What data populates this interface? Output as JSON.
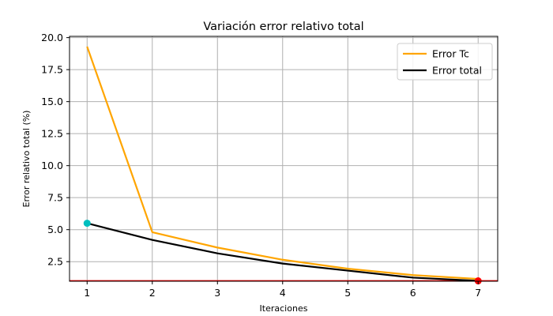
{
  "chart_data": {
    "type": "line",
    "title": "Variación error relativo total",
    "xlabel": "Iteraciones",
    "ylabel": "Error relativo total (%)",
    "xlim": [
      0.73,
      7.3
    ],
    "ylim": [
      0.97,
      20.1
    ],
    "xticks": [
      "1",
      "2",
      "3",
      "4",
      "5",
      "6",
      "7"
    ],
    "yticks": [
      "2.5",
      "5.0",
      "7.5",
      "10.0",
      "12.5",
      "15.0",
      "17.5",
      "20.0"
    ],
    "grid": true,
    "legend_position": "top-right",
    "x": [
      1,
      2,
      3,
      4,
      5,
      6,
      7
    ],
    "series": [
      {
        "name": "Error Tc",
        "color": "#ffa500",
        "values": [
          19.3,
          4.8,
          3.6,
          2.65,
          1.95,
          1.45,
          1.15
        ]
      },
      {
        "name": "Error total",
        "color": "#000000",
        "values": [
          5.5,
          4.2,
          3.15,
          2.35,
          1.8,
          1.25,
          1.0
        ]
      }
    ],
    "reference_line": {
      "y": 1.0,
      "color": "#ff0000"
    },
    "markers": [
      {
        "x": 1,
        "y": 5.5,
        "color": "#00bfbf"
      },
      {
        "x": 7,
        "y": 1.0,
        "color": "#ff0000"
      }
    ]
  }
}
